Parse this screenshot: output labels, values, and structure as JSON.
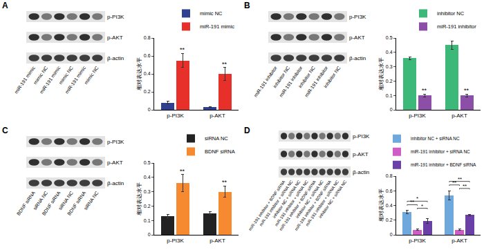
{
  "chart_data": [
    {
      "type": "bar",
      "categories": [
        "p-PI3K",
        "p-AKT"
      ],
      "ylabel": "相对表达水平",
      "series": [
        {
          "name": "mimic NC",
          "color": "#2f3f91",
          "values": [
            0.08,
            0.03
          ],
          "errors": [
            0.015,
            0.005
          ]
        },
        {
          "name": "miR-191 mimic",
          "color": "#e8302a",
          "values": [
            0.55,
            0.4
          ],
          "errors": [
            0.08,
            0.07
          ]
        }
      ],
      "ylim": [
        0,
        0.8
      ],
      "yticks": [
        0,
        0.2,
        0.4,
        0.6,
        0.8
      ],
      "grid": false,
      "legend": "top",
      "significance": [
        {
          "category": "p-PI3K",
          "series": "miR-191 mimic",
          "text": "**"
        },
        {
          "category": "p-AKT",
          "series": "miR-191 mimic",
          "text": "**"
        }
      ]
    },
    {
      "type": "bar",
      "categories": [
        "p-PI3K",
        "p-AKT"
      ],
      "ylabel": "相对表达水平",
      "series": [
        {
          "name": "inhibitor NC",
          "color": "#3cb878",
          "values": [
            0.36,
            0.45
          ],
          "errors": [
            0.01,
            0.03
          ]
        },
        {
          "name": "miR-191 inhibitor",
          "color": "#8b4fa8",
          "values": [
            0.1,
            0.1
          ],
          "errors": [
            0.01,
            0.01
          ]
        }
      ],
      "ylim": [
        0,
        0.5
      ],
      "yticks": [
        0,
        0.1,
        0.2,
        0.3,
        0.4,
        0.5
      ],
      "grid": false,
      "legend": "top",
      "significance": [
        {
          "category": "p-PI3K",
          "series": "miR-191 inhibitor",
          "text": "**"
        },
        {
          "category": "p-AKT",
          "series": "miR-191 inhibitor",
          "text": "**"
        }
      ]
    },
    {
      "type": "bar",
      "categories": [
        "p-PI3K",
        "p-AKT"
      ],
      "ylabel": "相对表达水平",
      "series": [
        {
          "name": "siRNA NC",
          "color": "#222222",
          "values": [
            0.13,
            0.15
          ],
          "errors": [
            0.01,
            0.01
          ]
        },
        {
          "name": "BDNF siRNA",
          "color": "#f58a30",
          "values": [
            0.36,
            0.3
          ],
          "errors": [
            0.06,
            0.04
          ]
        }
      ],
      "ylim": [
        0,
        0.5
      ],
      "yticks": [
        0,
        0.1,
        0.2,
        0.3,
        0.4,
        0.5
      ],
      "grid": false,
      "legend": "top",
      "significance": [
        {
          "category": "p-PI3K",
          "series": "BDNF siRNA",
          "text": "**"
        },
        {
          "category": "p-AKT",
          "series": "BDNF siRNA",
          "text": "**"
        }
      ]
    },
    {
      "type": "bar",
      "categories": [
        "p-PI3K",
        "p-AKT"
      ],
      "ylabel": "相对表达水平",
      "series": [
        {
          "name": "inhibitor NC + siRNA NC",
          "color": "#6fa8dc",
          "values": [
            0.31,
            0.54
          ],
          "errors": [
            0.02,
            0.06
          ]
        },
        {
          "name": "miR-191 inhibitor + siRNA NC",
          "color": "#d05dc6",
          "values": [
            0.07,
            0.07
          ],
          "errors": [
            0.01,
            0.01
          ]
        },
        {
          "name": "miR-191 inhibitor + BDNF siRNA",
          "color": "#6a40a8",
          "values": [
            0.19,
            0.27
          ],
          "errors": [
            0.03,
            0.01
          ]
        }
      ],
      "ylim": [
        0,
        0.8
      ],
      "yticks": [
        0,
        0.2,
        0.4,
        0.6,
        0.8
      ],
      "grid": false,
      "legend": "top",
      "significance": [
        {
          "category": "p-PI3K",
          "pair": [
            "miR-191 inhibitor + siRNA NC",
            "miR-191 inhibitor + BDNF siRNA"
          ],
          "text": "*"
        },
        {
          "category": "p-PI3K",
          "pair": [
            "inhibitor NC + siRNA NC",
            "miR-191 inhibitor + siRNA NC"
          ],
          "text": "**"
        },
        {
          "category": "p-PI3K",
          "pair": [
            "inhibitor NC + siRNA NC",
            "miR-191 inhibitor + BDNF siRNA"
          ],
          "text": "*"
        },
        {
          "category": "p-AKT",
          "pair": [
            "miR-191 inhibitor + siRNA NC",
            "miR-191 inhibitor + BDNF siRNA"
          ],
          "text": "**"
        },
        {
          "category": "p-AKT",
          "pair": [
            "inhibitor NC + siRNA NC",
            "miR-191 inhibitor + siRNA NC"
          ],
          "text": "**"
        },
        {
          "category": "p-AKT",
          "pair": [
            "inhibitor NC + siRNA NC",
            "miR-191 inhibitor + BDNF siRNA"
          ],
          "text": "**"
        }
      ]
    }
  ],
  "blots": [
    {
      "panel": "A",
      "rows": [
        "p-PI3K",
        "p-AKT",
        "β-actin"
      ],
      "lanes": [
        "miR-191 mimic",
        "mimic NC",
        "miR-191 mimic",
        "mimic NC",
        "miR-191 mimic",
        "mimic NC"
      ]
    },
    {
      "panel": "B",
      "rows": [
        "p-PI3K",
        "p-AKT",
        "β-actin"
      ],
      "lanes": [
        "miR-191 inhibitor",
        "inhibitor NC",
        "miR-191 inhibitor",
        "inhibitor NC",
        "miR-191 inhibitor",
        "inhibitor NC"
      ]
    },
    {
      "panel": "C",
      "rows": [
        "p-PI3K",
        "p-AKT",
        "β-actin"
      ],
      "lanes": [
        "BDNF siRNA",
        "siRNA NC",
        "BDNF siRNA",
        "siRNA NC",
        "BDNF siRNA",
        "siRNA NC"
      ]
    },
    {
      "panel": "D",
      "rows": [
        "p-PI3K",
        "p-AKT",
        "β-actin"
      ],
      "lanes": [
        "miR-191 inhibitor + BDNF siRNA",
        "miR-191 inhibitor + siRNA NC",
        "inhibitor NC + siRNA NC",
        "miR-191 inhibitor + siRNA NC",
        "miR-191 inhibitor + BDNF siRNA",
        "inhibitor NC + siRNA NC",
        "miR-191 inhibitor + BDNF siRNA",
        "miR-191 inhibitor + siRNA NC",
        "inhibitor NC + siRNA NC"
      ]
    }
  ]
}
